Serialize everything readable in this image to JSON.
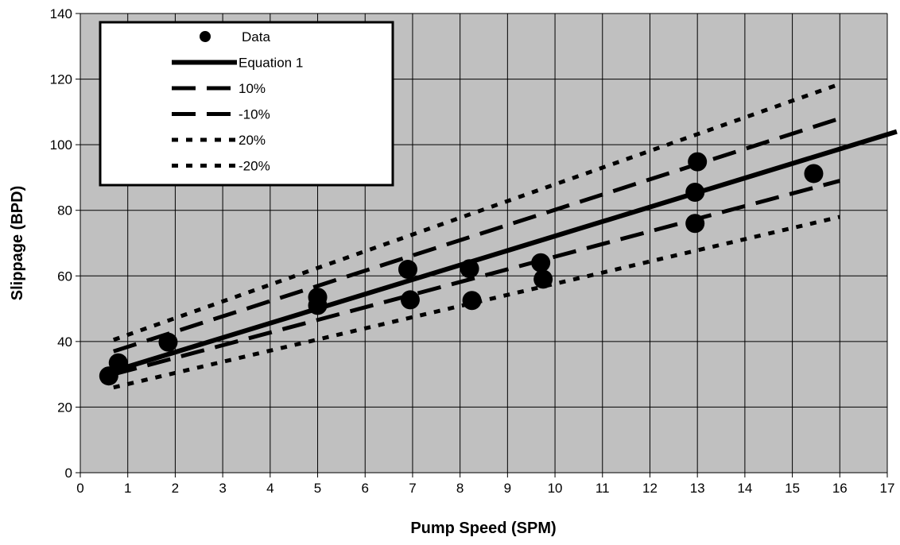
{
  "chart_data": {
    "type": "scatter",
    "xlabel": "Pump Speed (SPM)",
    "ylabel": "Slippage (BPD)",
    "xlim": [
      0,
      17
    ],
    "ylim": [
      0,
      140
    ],
    "x_ticks": [
      0,
      1,
      2,
      3,
      4,
      5,
      6,
      7,
      8,
      9,
      10,
      11,
      12,
      13,
      14,
      15,
      16,
      17
    ],
    "y_ticks": [
      0,
      20,
      40,
      60,
      80,
      100,
      120,
      140
    ],
    "grid": true,
    "plot_background": "#c0c0c0",
    "legend_position": "top-left",
    "series": [
      {
        "name": "Data",
        "kind": "marker",
        "points": [
          {
            "x": 0.6,
            "y": 29.5
          },
          {
            "x": 0.8,
            "y": 33.5
          },
          {
            "x": 1.85,
            "y": 39.8
          },
          {
            "x": 5.0,
            "y": 53.5
          },
          {
            "x": 5.0,
            "y": 51.0
          },
          {
            "x": 6.9,
            "y": 62.0
          },
          {
            "x": 6.95,
            "y": 52.7
          },
          {
            "x": 8.2,
            "y": 62.2
          },
          {
            "x": 8.25,
            "y": 52.5
          },
          {
            "x": 9.7,
            "y": 64.0
          },
          {
            "x": 9.75,
            "y": 59.0
          },
          {
            "x": 12.95,
            "y": 85.5
          },
          {
            "x": 13.0,
            "y": 94.8
          },
          {
            "x": 12.95,
            "y": 76.0
          },
          {
            "x": 15.45,
            "y": 91.2
          }
        ]
      },
      {
        "name": "Equation 1",
        "kind": "line",
        "style": "solid",
        "points": [
          {
            "x": 0.7,
            "y": 31.0
          },
          {
            "x": 17.2,
            "y": 104.0
          }
        ]
      },
      {
        "name": "10%",
        "kind": "line",
        "style": "dash",
        "points": [
          {
            "x": 0.7,
            "y": 37.0
          },
          {
            "x": 16.0,
            "y": 108.0
          }
        ]
      },
      {
        "name": "-10%",
        "kind": "line",
        "style": "dash",
        "points": [
          {
            "x": 0.7,
            "y": 30.0
          },
          {
            "x": 16.0,
            "y": 89.0
          }
        ]
      },
      {
        "name": "20%",
        "kind": "line",
        "style": "dot",
        "points": [
          {
            "x": 0.7,
            "y": 40.5
          },
          {
            "x": 16.0,
            "y": 118.5
          }
        ]
      },
      {
        "name": "-20%",
        "kind": "line",
        "style": "dot",
        "points": [
          {
            "x": 0.7,
            "y": 26.0
          },
          {
            "x": 16.0,
            "y": 78.0
          }
        ]
      }
    ]
  }
}
